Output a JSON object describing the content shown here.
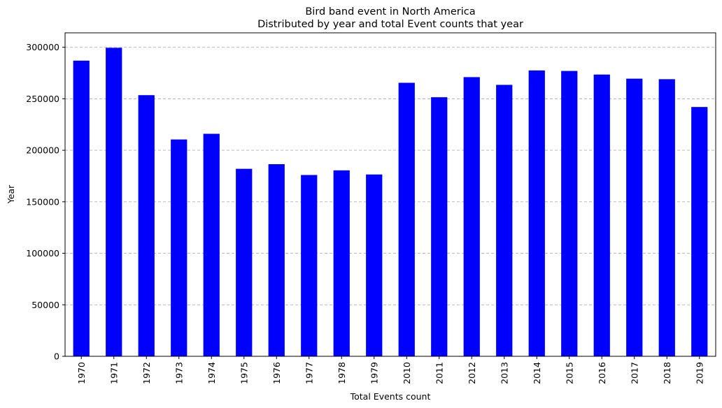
{
  "chart_data": {
    "type": "bar",
    "title": "Bird band event in North America",
    "subtitle": "Distributed by year and total Event counts that year",
    "xlabel": "Total Events count",
    "ylabel": "Year",
    "categories": [
      "1970",
      "1971",
      "1972",
      "1973",
      "1974",
      "1975",
      "1976",
      "1977",
      "1978",
      "1979",
      "2010",
      "2011",
      "2012",
      "2013",
      "2014",
      "2015",
      "2016",
      "2017",
      "2018",
      "2019"
    ],
    "values": [
      287000,
      299500,
      253500,
      210500,
      216000,
      182000,
      186500,
      176000,
      180500,
      176500,
      265500,
      251500,
      271000,
      263500,
      277500,
      277000,
      273500,
      269500,
      269000,
      242000
    ],
    "ylim": [
      0,
      314000
    ],
    "yticks": [
      0,
      50000,
      100000,
      150000,
      200000,
      250000,
      300000
    ],
    "ytick_labels": [
      "0",
      "50000",
      "100000",
      "150000",
      "200000",
      "250000",
      "300000"
    ],
    "grid": "y-dashed",
    "bar_color": "#0000ff"
  }
}
